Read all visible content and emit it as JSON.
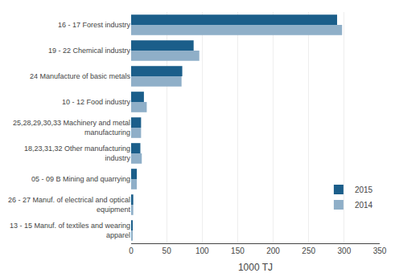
{
  "chart_data": {
    "type": "bar",
    "orientation": "horizontal",
    "categories": [
      "16 - 17 Forest industry",
      "19 - 22 Chemical industry",
      "24 Manufacture of basic metals",
      "10 - 12 Food industry",
      "25,28,29,30,33 Machinery and metal\nmanufacturing",
      "18,23,31,32 Other manufacturing\nindustry",
      "05 - 09 B Mining and quarrying",
      "26 - 27 Manuf. of electrical and optical\nequipment",
      "13 - 15 Manuf. of textiles and wearing\napparel"
    ],
    "series": [
      {
        "name": "2015",
        "color": "#1b5e8a",
        "values": [
          290,
          88,
          72,
          18,
          14,
          13,
          8,
          3,
          2
        ]
      },
      {
        "name": "2014",
        "color": "#8fafc8",
        "values": [
          297,
          96,
          71,
          22,
          14,
          15,
          8,
          3,
          2
        ]
      }
    ],
    "xlabel": "1000 TJ",
    "xlim": [
      0,
      350
    ],
    "xticks": [
      0,
      50,
      100,
      150,
      200,
      250,
      300,
      350
    ],
    "grid": true,
    "legend": "lower right"
  }
}
